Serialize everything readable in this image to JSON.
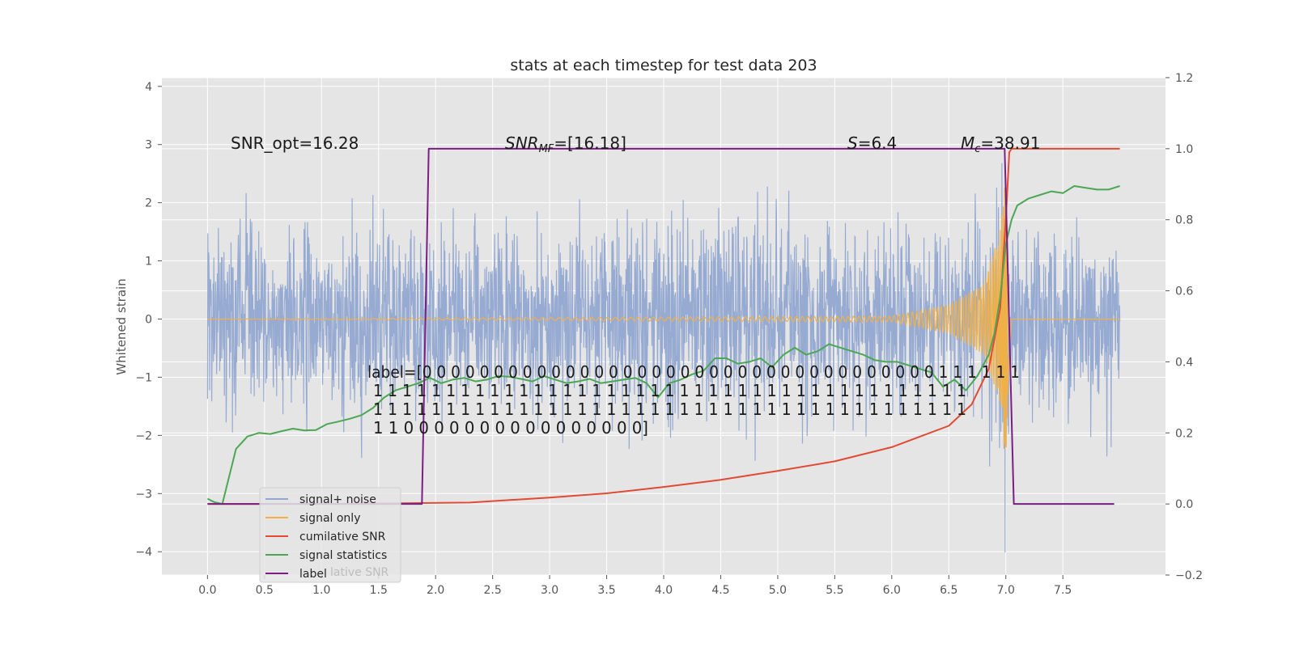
{
  "chart_data": {
    "type": "line",
    "title": "stats at each timestep for test data 203",
    "xlabel": "",
    "ylabel": "Whitened strain",
    "y2label": "",
    "xlim": [
      -0.4,
      8.4
    ],
    "ylim": [
      -4.4,
      4.15
    ],
    "y2lim": [
      -0.2,
      1.2
    ],
    "x_ticks": [
      "0.0",
      "0.5",
      "1.0",
      "1.5",
      "2.0",
      "2.5",
      "3.0",
      "3.5",
      "4.0",
      "4.5",
      "5.0",
      "5.5",
      "6.0",
      "6.5",
      "7.0",
      "7.5"
    ],
    "y_ticks": [
      "−4",
      "−3",
      "−2",
      "−1",
      "0",
      "1",
      "2",
      "3",
      "4"
    ],
    "y2_ticks": [
      "−0.2",
      "0.0",
      "0.2",
      "0.4",
      "0.6",
      "0.8",
      "1.0",
      "1.2"
    ],
    "grid": true,
    "legend_position": "lower-left",
    "annotations": {
      "snr_opt": "SNR_opt=16.28",
      "snr_mf": "=[16.18]",
      "snr_mf_sym": "SNR",
      "snr_mf_sub": "MF",
      "s_value": "=6.4",
      "s_sym": "S",
      "mc_value": "=38.91",
      "mc_sym": "M",
      "mc_sub": "c",
      "label_lines": [
        "label=[0 0 0 0 0 0 0 0 0 0 0 0 0 0 0 0 0 0 0 0 0 0 0 0 0 0 0 0 0 0 0 0 0 0 0 0 1 1 1 1 1 1",
        "1 1 1 1 1 1 1 1 1 1 1 1 1 1 1 1 1 1 1 1 1 1 1 1 1 1 1 1 1 1 1 1 1 1 1 1 1 1 1 1 1",
        "1 1 1 1 1 1 1 1 1 1 1 1 1 1 1 1 1 1 1 1 1 1 1 1 1 1 1 1 1 1 1 1 1 1 1 1 1 1 1 1 1",
        "1 1 0 0 0 0 0 0 0 0 0 0 0 0 0 0 0 0]"
      ]
    },
    "series": [
      {
        "name": "signal+ noise",
        "axis": "left",
        "color": "#92a8d1",
        "noise_amplitude": 1.6,
        "x_range": [
          0,
          8.0
        ]
      },
      {
        "name": "signal only",
        "axis": "left",
        "color": "#f0b048",
        "x": [
          0.0,
          6.0,
          6.5,
          6.8,
          6.95,
          7.0,
          7.02,
          7.05
        ],
        "amplitude": [
          0.0,
          0.05,
          0.25,
          0.6,
          1.5,
          2.5,
          1.0,
          0.0
        ]
      },
      {
        "name": "cumilative SNR",
        "axis": "right",
        "color": "#e24a33",
        "x": [
          0.0,
          1.0,
          2.3,
          3.0,
          3.5,
          4.0,
          4.5,
          5.0,
          5.5,
          6.0,
          6.5,
          6.7,
          6.85,
          6.95,
          7.0,
          7.03,
          7.05,
          8.0
        ],
        "y": [
          0.0,
          0.0,
          0.004,
          0.018,
          0.03,
          0.048,
          0.068,
          0.093,
          0.12,
          0.16,
          0.22,
          0.28,
          0.38,
          0.55,
          0.8,
          0.99,
          1.0,
          1.0
        ]
      },
      {
        "name": "signal statistics",
        "axis": "right",
        "color": "#4ca755",
        "x": [
          0.0,
          0.06,
          0.13,
          0.25,
          0.35,
          0.45,
          0.55,
          0.65,
          0.75,
          0.85,
          0.95,
          1.05,
          1.15,
          1.25,
          1.35,
          1.45,
          1.55,
          1.65,
          1.75,
          1.85,
          1.95,
          2.05,
          2.15,
          2.25,
          2.35,
          2.45,
          2.55,
          2.65,
          2.75,
          2.85,
          2.95,
          3.05,
          3.15,
          3.25,
          3.35,
          3.45,
          3.55,
          3.65,
          3.75,
          3.85,
          3.95,
          4.05,
          4.15,
          4.25,
          4.35,
          4.45,
          4.55,
          4.65,
          4.75,
          4.85,
          4.95,
          5.05,
          5.15,
          5.25,
          5.35,
          5.45,
          5.55,
          5.65,
          5.75,
          5.85,
          5.95,
          6.05,
          6.15,
          6.25,
          6.35,
          6.45,
          6.55,
          6.65,
          6.75,
          6.85,
          6.9,
          6.95,
          7.0,
          7.05,
          7.1,
          7.2,
          7.3,
          7.4,
          7.5,
          7.6,
          7.7,
          7.8,
          7.9,
          8.0
        ],
        "y": [
          0.015,
          0.005,
          0.0,
          0.155,
          0.19,
          0.2,
          0.197,
          0.205,
          0.212,
          0.207,
          0.208,
          0.225,
          0.232,
          0.24,
          0.25,
          0.27,
          0.3,
          0.32,
          0.33,
          0.34,
          0.355,
          0.34,
          0.35,
          0.355,
          0.345,
          0.35,
          0.36,
          0.358,
          0.352,
          0.345,
          0.36,
          0.35,
          0.34,
          0.345,
          0.352,
          0.34,
          0.345,
          0.35,
          0.355,
          0.34,
          0.3,
          0.34,
          0.35,
          0.365,
          0.375,
          0.41,
          0.41,
          0.395,
          0.4,
          0.41,
          0.385,
          0.42,
          0.44,
          0.42,
          0.43,
          0.45,
          0.44,
          0.43,
          0.42,
          0.405,
          0.4,
          0.4,
          0.39,
          0.38,
          0.37,
          0.33,
          0.35,
          0.32,
          0.36,
          0.42,
          0.48,
          0.58,
          0.73,
          0.8,
          0.84,
          0.86,
          0.87,
          0.88,
          0.875,
          0.895,
          0.89,
          0.885,
          0.885,
          0.895
        ]
      },
      {
        "name": "label",
        "axis": "right",
        "color": "#7a1e83",
        "x": [
          0.0,
          1.88,
          1.94,
          6.99,
          7.07,
          7.95
        ],
        "y": [
          0.0,
          0.0,
          1.0,
          1.0,
          0.0,
          0.0
        ]
      }
    ]
  },
  "legend_items": [
    "signal+ noise",
    "signal only",
    "cumilative SNR",
    "signal statistics",
    "label"
  ],
  "legend_overlap_text": "lative SNR"
}
